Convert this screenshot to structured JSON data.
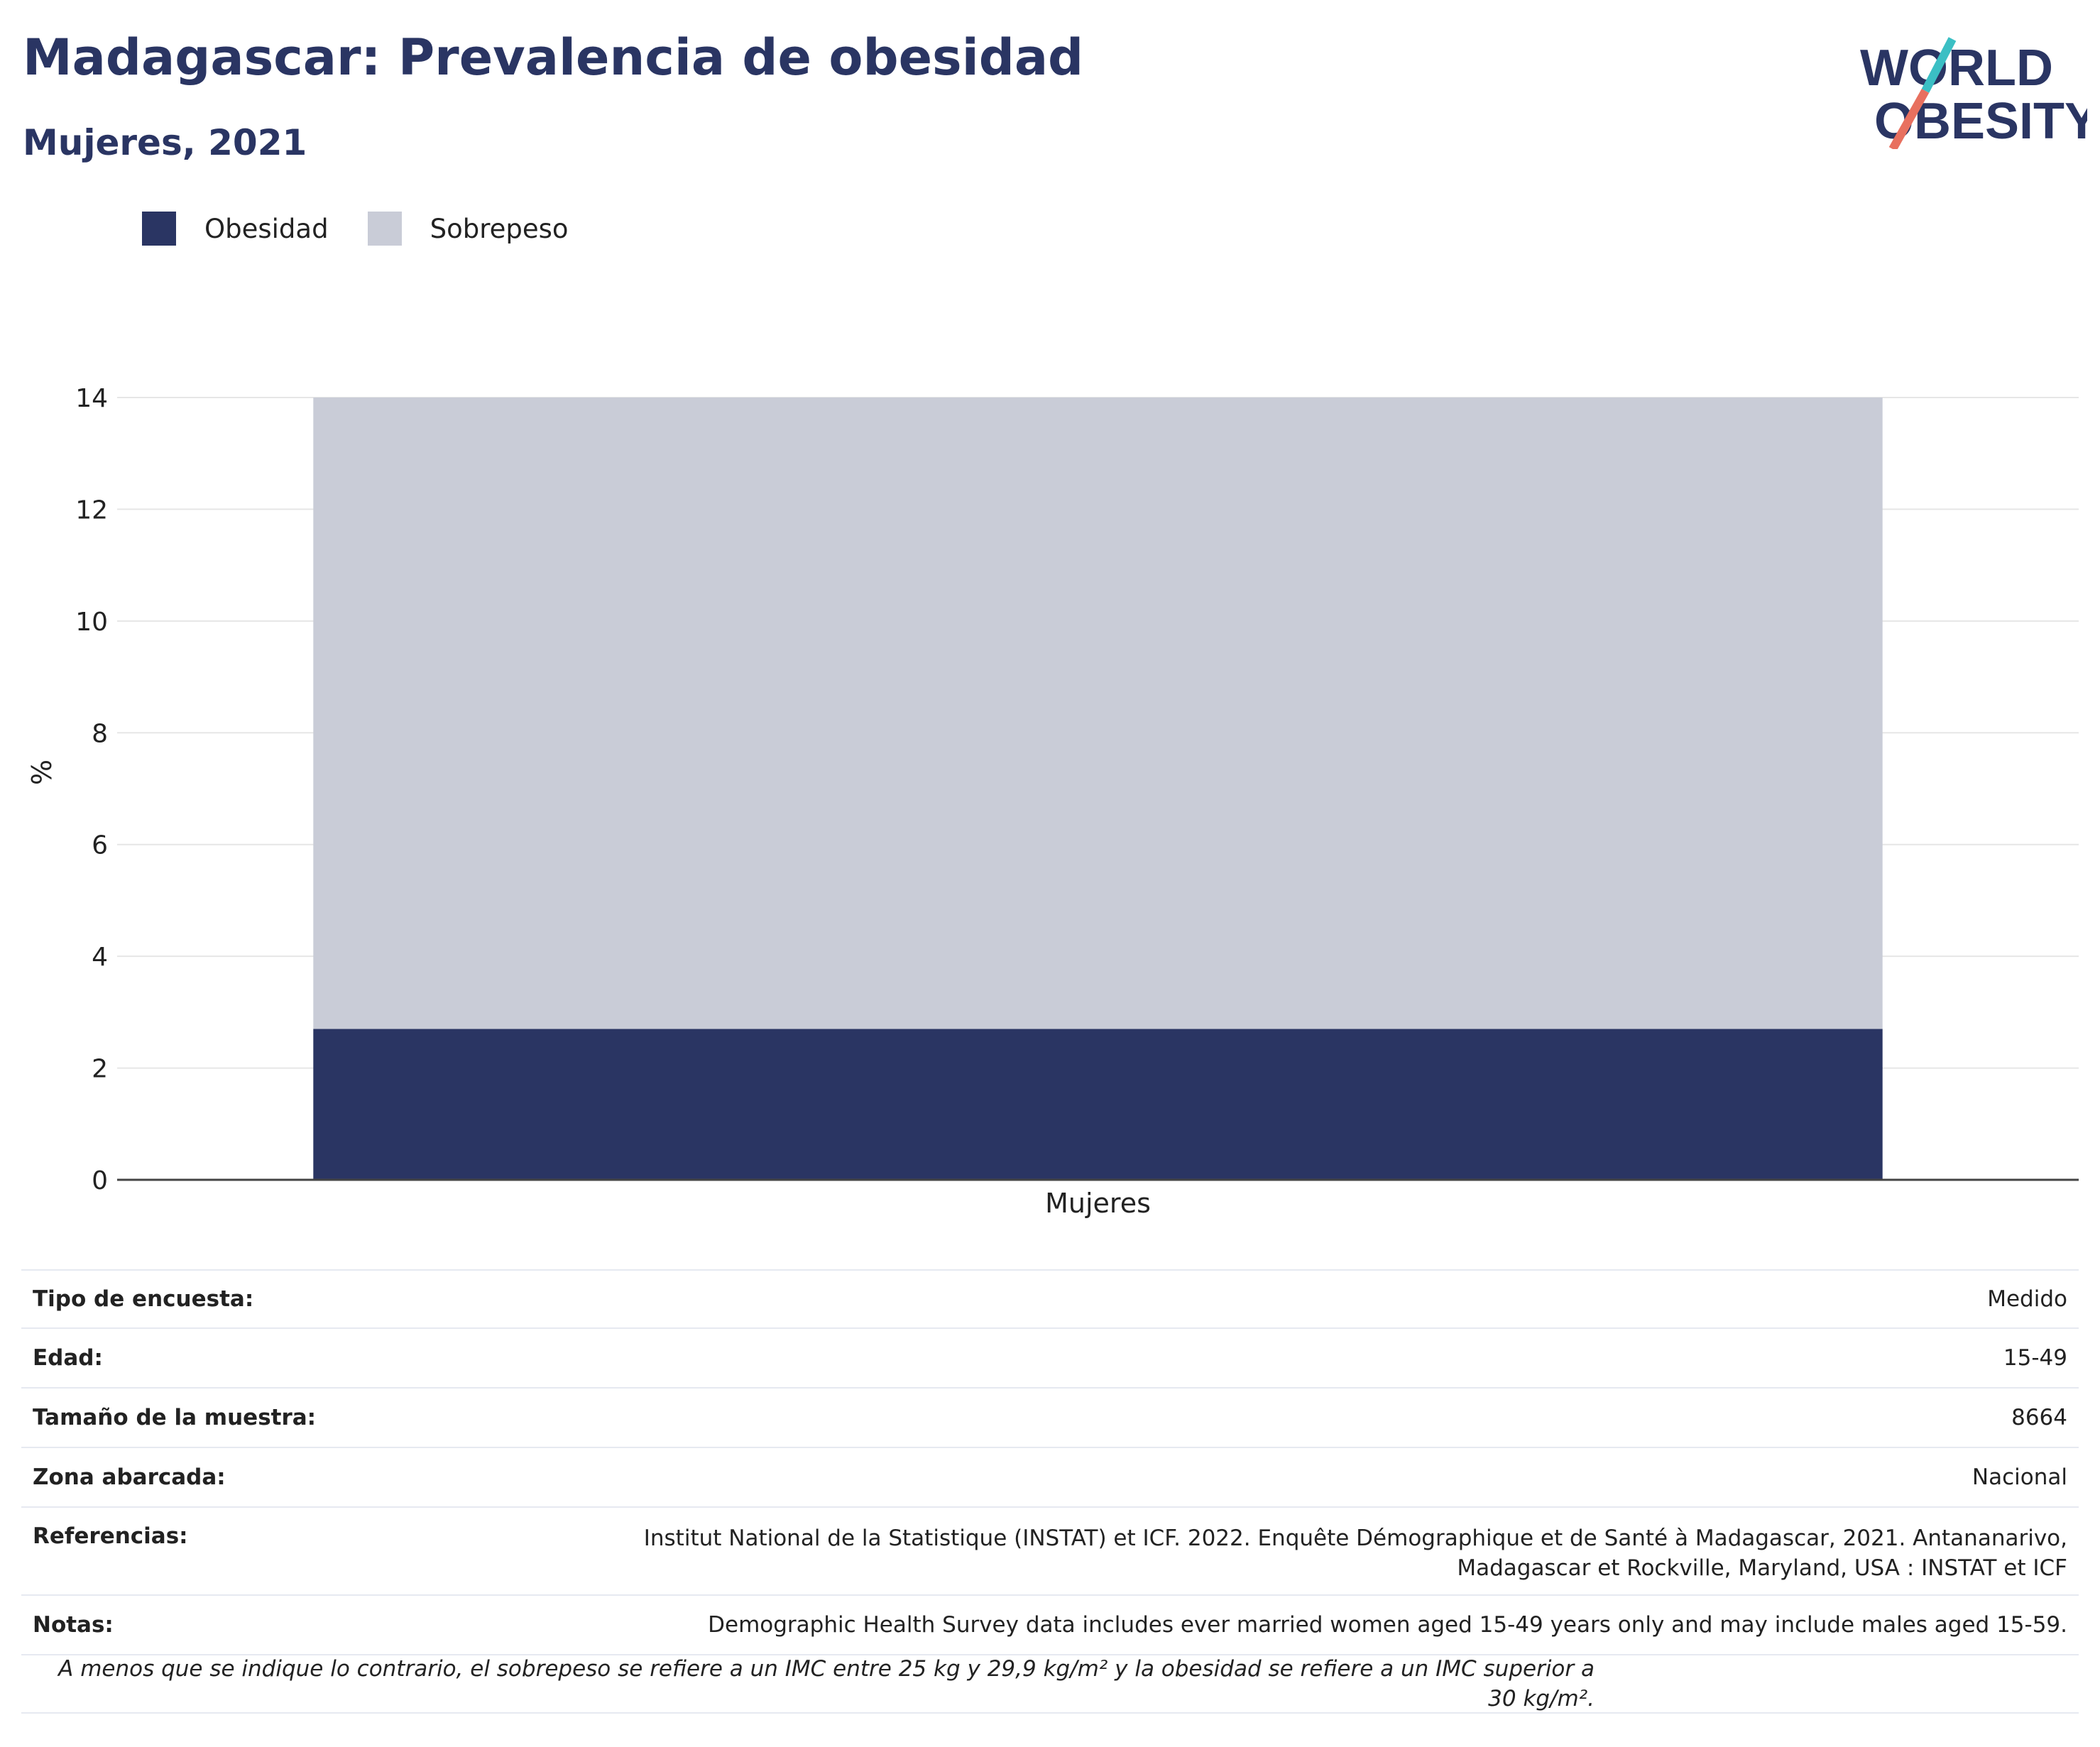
{
  "header": {
    "title": "Madagascar: Prevalencia de obesidad",
    "subtitle": "Mujeres, 2021"
  },
  "logo": {
    "line1": "WORLD",
    "line2": "OBESITY",
    "colors": {
      "text": "#2a3563",
      "slash_top": "#3bbfc4",
      "slash_bottom": "#e8705f"
    }
  },
  "legend": [
    {
      "label": "Obesidad",
      "color": "#2a3563"
    },
    {
      "label": "Sobrepeso",
      "color": "#c9ccd7"
    }
  ],
  "chart_data": {
    "type": "bar",
    "stacked": true,
    "categories": [
      "Mujeres"
    ],
    "series": [
      {
        "name": "Obesidad",
        "values": [
          2.7
        ],
        "color": "#2a3563"
      },
      {
        "name": "Sobrepeso",
        "values": [
          11.3
        ],
        "color": "#c9ccd7"
      }
    ],
    "ylabel": "%",
    "xlabel": "",
    "ylim": [
      0,
      14
    ],
    "yticks": [
      0,
      2,
      4,
      6,
      8,
      10,
      12,
      14
    ],
    "grid": true,
    "legend_position": "top-left"
  },
  "info": {
    "rows": [
      {
        "key": "Tipo de encuesta:",
        "value": "Medido"
      },
      {
        "key": "Edad:",
        "value": "15-49"
      },
      {
        "key": "Tamaño de la muestra:",
        "value": "8664"
      },
      {
        "key": "Zona abarcada:",
        "value": "Nacional"
      },
      {
        "key": "Referencias:",
        "value": "Institut National de la Statistique (INSTAT) et ICF. 2022. Enquête Démographique et de Santé à Madagascar, 2021. Antananarivo, Madagascar et Rockville, Maryland, USA : INSTAT et ICF"
      },
      {
        "key": "Notas:",
        "value": "Demographic Health Survey data includes ever married women aged 15-49 years only and may include males aged 15-59."
      }
    ],
    "footnote": "A menos que se indique lo contrario, el sobrepeso se refiere a un IMC entre 25 kg y 29,9 kg/m² y la obesidad se refiere a un IMC superior a 30 kg/m²."
  }
}
